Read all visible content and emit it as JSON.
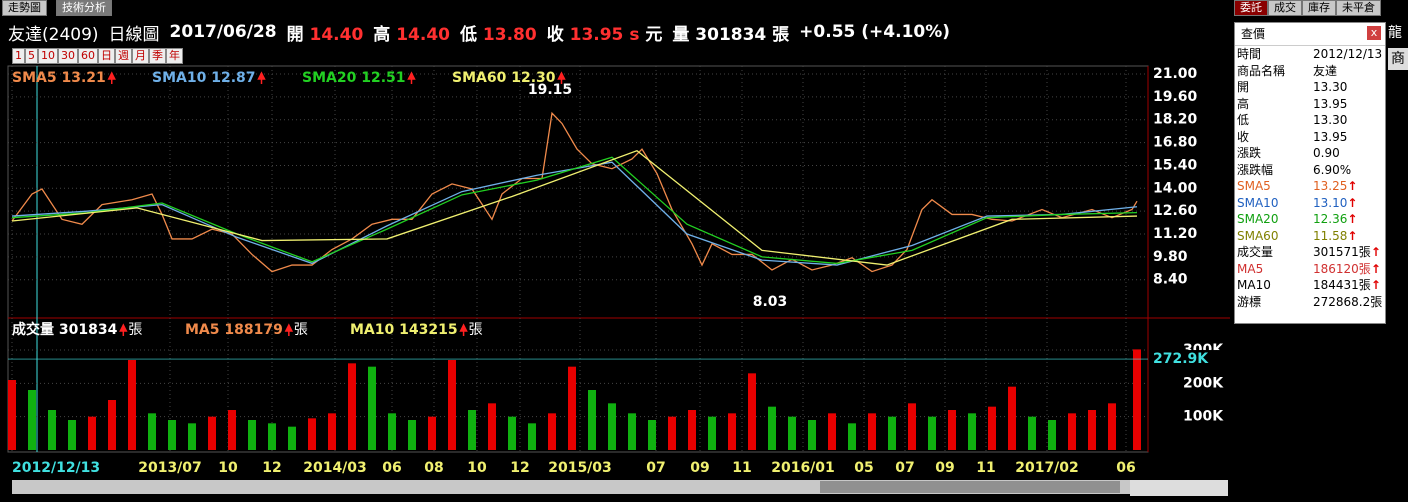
{
  "tabs": [
    "走勢圖",
    "技術分析"
  ],
  "header": {
    "name": "友達(2409)",
    "chart_kind": "日線圖",
    "date": "2017/06/28",
    "open_label": "開",
    "open": "14.40",
    "high_label": "高",
    "high": "14.40",
    "low_label": "低",
    "low": "13.80",
    "close_label": "收",
    "close": "13.95",
    "unit_s": "s",
    "unit": "元",
    "volume_label": "量",
    "volume": "301834 張",
    "change": "+0.55 (+4.10%)"
  },
  "period_buttons": [
    "1",
    "5",
    "10",
    "30",
    "60",
    "日",
    "週",
    "月",
    "季",
    "年"
  ],
  "price_chart": {
    "type": "line",
    "grid": true,
    "xlim": [
      0,
      1134
    ],
    "ylim": [
      6.18,
      21.49
    ],
    "yticks": [
      {
        "value": 21,
        "label": "21.00"
      },
      {
        "value": 19.6,
        "label": "19.60"
      },
      {
        "value": 18.2,
        "label": "18.20"
      },
      {
        "value": 16.8,
        "label": "16.80"
      },
      {
        "value": 15.4,
        "label": "15.40"
      },
      {
        "value": 14,
        "label": "14.00"
      },
      {
        "value": 12.6,
        "label": "12.60"
      },
      {
        "value": 11.2,
        "label": "11.20"
      },
      {
        "value": 9.8,
        "label": "9.80"
      },
      {
        "value": 8.4,
        "label": "8.40"
      }
    ],
    "xticks": [
      {
        "value": 0,
        "label": "2012/12/13"
      },
      {
        "value": 158,
        "label": "2013/07"
      },
      {
        "value": 216,
        "label": "10"
      },
      {
        "value": 260,
        "label": "12"
      },
      {
        "value": 323,
        "label": "2014/03"
      },
      {
        "value": 380,
        "label": "06"
      },
      {
        "value": 422,
        "label": "08"
      },
      {
        "value": 465,
        "label": "10"
      },
      {
        "value": 508,
        "label": "12"
      },
      {
        "value": 568,
        "label": "2015/03"
      },
      {
        "value": 644,
        "label": "07"
      },
      {
        "value": 688,
        "label": "09"
      },
      {
        "value": 730,
        "label": "11"
      },
      {
        "value": 791,
        "label": "2016/01"
      },
      {
        "value": 852,
        "label": "05"
      },
      {
        "value": 893,
        "label": "07"
      },
      {
        "value": 933,
        "label": "09"
      },
      {
        "value": 974,
        "label": "11"
      },
      {
        "value": 1035,
        "label": "2017/02"
      },
      {
        "value": 1114,
        "label": "06"
      }
    ],
    "series": [
      {
        "name": "SMA5 13.21",
        "color": "#f08a4b",
        "x": [
          0,
          20,
          30,
          50,
          70,
          90,
          120,
          140,
          150,
          160,
          180,
          200,
          220,
          240,
          260,
          280,
          300,
          320,
          340,
          360,
          380,
          400,
          420,
          440,
          460,
          480,
          490,
          510,
          530,
          540,
          550,
          565,
          580,
          600,
          620,
          630,
          645,
          660,
          680,
          690,
          700,
          720,
          740,
          760,
          780,
          800,
          820,
          840,
          860,
          880,
          895,
          910,
          920,
          940,
          960,
          980,
          1000,
          1030,
          1050,
          1080,
          1100,
          1120,
          1125
        ],
        "values": [
          12.0,
          13.65,
          13.96,
          12.1,
          11.8,
          13.0,
          13.3,
          13.65,
          12.4,
          10.9,
          10.9,
          11.5,
          11.2,
          9.95,
          8.9,
          9.3,
          9.3,
          10.25,
          10.9,
          11.8,
          12.1,
          12.1,
          13.65,
          14.27,
          13.96,
          12.1,
          13.65,
          14.6,
          14.6,
          18.6,
          17.97,
          16.4,
          15.5,
          15.2,
          15.8,
          16.4,
          14.9,
          12.7,
          10.6,
          9.3,
          10.6,
          9.95,
          9.95,
          9.0,
          9.65,
          9.0,
          9.3,
          9.75,
          8.9,
          9.3,
          10.25,
          12.7,
          13.3,
          12.4,
          12.4,
          12.1,
          12.0,
          12.7,
          12.2,
          12.7,
          12.2,
          12.7,
          13.21
        ]
      },
      {
        "name": "SMA10 12.87",
        "color": "#6fb0e8",
        "x": [
          0,
          75,
          150,
          225,
          300,
          375,
          450,
          525,
          600,
          675,
          750,
          825,
          900,
          975,
          1050,
          1125
        ],
        "values": [
          12.3,
          12.6,
          13.0,
          11.0,
          9.4,
          11.7,
          13.8,
          14.8,
          15.6,
          11.2,
          9.6,
          9.3,
          10.5,
          12.3,
          12.4,
          12.87
        ]
      },
      {
        "name": "SMA20 12.51",
        "color": "#22d022",
        "x": [
          0,
          75,
          150,
          225,
          300,
          375,
          450,
          525,
          600,
          675,
          750,
          825,
          900,
          975,
          1050,
          1125
        ],
        "values": [
          12.2,
          12.5,
          13.1,
          11.2,
          9.5,
          11.5,
          13.6,
          14.5,
          15.9,
          11.8,
          9.8,
          9.4,
          10.2,
          12.2,
          12.4,
          12.51
        ]
      },
      {
        "name": "SMA60 12.30",
        "color": "#f0f070",
        "x": [
          0,
          125,
          250,
          375,
          500,
          625,
          750,
          875,
          1000,
          1125
        ],
        "values": [
          12.0,
          12.8,
          10.8,
          10.9,
          13.5,
          16.3,
          10.2,
          9.3,
          12.1,
          12.3
        ]
      }
    ],
    "annotations": [
      {
        "x": 540,
        "value": 19.15
      },
      {
        "x": 760,
        "value": 8.03
      }
    ]
  },
  "volume_chart": {
    "type": "bar",
    "xlim": [
      0,
      1134
    ],
    "ylim": [
      0,
      390000
    ],
    "yticks": [
      {
        "value": 100000,
        "label": "100K"
      },
      {
        "value": 200000,
        "label": "200K"
      },
      {
        "value": 300000,
        "label": "300K"
      }
    ],
    "legend": [
      {
        "label": "成交量 301834",
        "color": "#ffffff"
      },
      {
        "label": "MA5 188179",
        "color": "#f08a4b"
      },
      {
        "label": "MA10 143215",
        "color": "#f0f070"
      }
    ],
    "unit": "張",
    "up_color": "#e80000",
    "down_color": "#10b010",
    "x": [
      0,
      20,
      40,
      60,
      80,
      100,
      120,
      140,
      160,
      180,
      200,
      220,
      240,
      260,
      280,
      300,
      320,
      340,
      360,
      380,
      400,
      420,
      440,
      460,
      480,
      500,
      520,
      540,
      560,
      580,
      600,
      620,
      640,
      660,
      680,
      700,
      720,
      740,
      760,
      780,
      800,
      820,
      840,
      860,
      880,
      900,
      920,
      940,
      960,
      980,
      1000,
      1020,
      1040,
      1060,
      1080,
      1100,
      1125
    ],
    "values": [
      210000,
      180000,
      120000,
      90000,
      100000,
      150000,
      270000,
      110000,
      90000,
      80000,
      100000,
      120000,
      90000,
      80000,
      70000,
      95000,
      110000,
      260000,
      250000,
      110000,
      90000,
      100000,
      270000,
      120000,
      140000,
      100000,
      80000,
      110000,
      250000,
      180000,
      140000,
      110000,
      90000,
      100000,
      120000,
      100000,
      110000,
      230000,
      130000,
      100000,
      90000,
      110000,
      80000,
      110000,
      100000,
      140000,
      100000,
      120000,
      110000,
      130000,
      190000,
      100000,
      90000,
      110000,
      120000,
      140000,
      301834
    ],
    "marker": {
      "value": 272900,
      "label": "272.9K"
    }
  },
  "right_tabs": [
    "委託",
    "成交",
    "庫存",
    "未平倉"
  ],
  "side_text": "龍",
  "side_button": "商",
  "quote_panel": {
    "title": "查價",
    "close": "x",
    "rows": [
      {
        "label": "時間",
        "value": "2012/12/13",
        "color": "#000000"
      },
      {
        "label": "商品名稱",
        "value": "友達",
        "color": "#000000"
      },
      {
        "label": "開",
        "value": "13.30",
        "color": "#000000"
      },
      {
        "label": "高",
        "value": "13.95",
        "color": "#000000"
      },
      {
        "label": "低",
        "value": "13.30",
        "color": "#000000"
      },
      {
        "label": "收",
        "value": "13.95",
        "color": "#000000"
      },
      {
        "label": "漲跌",
        "value": "0.90",
        "color": "#000000"
      },
      {
        "label": "漲跌幅",
        "value": "6.90%",
        "color": "#000000"
      },
      {
        "label": "SMA5",
        "value": "13.25",
        "color": "#e06020",
        "up": true
      },
      {
        "label": "SMA10",
        "value": "13.10",
        "color": "#2060c0",
        "up": true
      },
      {
        "label": "SMA20",
        "value": "12.36",
        "color": "#10a010",
        "up": true
      },
      {
        "label": "SMA60",
        "value": "11.58",
        "color": "#808000",
        "up": true
      },
      {
        "label": "成交量",
        "value": "301571張",
        "color": "#000000",
        "up": true
      },
      {
        "label": "MA5",
        "value": "186120張",
        "color": "#d03030",
        "up": true
      },
      {
        "label": "MA10",
        "value": "184431張",
        "color": "#000000",
        "up": true
      },
      {
        "label": "游標",
        "value": "272868.2張",
        "color": "#000000"
      }
    ]
  }
}
